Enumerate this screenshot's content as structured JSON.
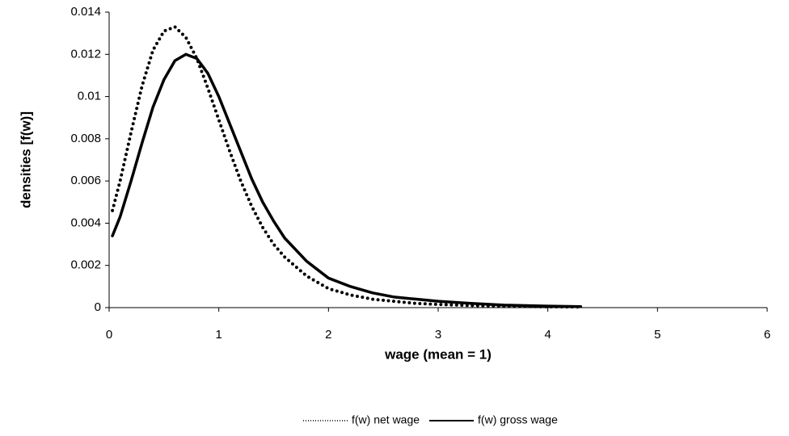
{
  "chart_data": {
    "type": "line",
    "x_label": "wage (mean = 1)",
    "y_label": "densities [f(w)]",
    "x": [
      0.03,
      0.1,
      0.2,
      0.3,
      0.4,
      0.5,
      0.6,
      0.7,
      0.8,
      0.9,
      1.0,
      1.1,
      1.2,
      1.3,
      1.4,
      1.5,
      1.6,
      1.8,
      2.0,
      2.2,
      2.4,
      2.6,
      2.8,
      3.0,
      3.3,
      3.6,
      4.0,
      4.3
    ],
    "series": [
      {
        "name": "f(w) net wage",
        "color": "#000000",
        "dash": "dotted",
        "values": [
          0.0046,
          0.006,
          0.0083,
          0.0105,
          0.0122,
          0.0131,
          0.0133,
          0.0128,
          0.0118,
          0.0104,
          0.0089,
          0.0074,
          0.006,
          0.0048,
          0.0038,
          0.003,
          0.0024,
          0.0015,
          0.0009,
          0.0006,
          0.0004,
          0.0003,
          0.0002,
          0.00015,
          0.0001,
          7e-05,
          4e-05,
          3e-05
        ]
      },
      {
        "name": "f(w) gross wage",
        "color": "#000000",
        "dash": "solid",
        "values": [
          0.0034,
          0.0043,
          0.006,
          0.0078,
          0.0095,
          0.0108,
          0.0117,
          0.012,
          0.0118,
          0.0111,
          0.01,
          0.0087,
          0.0074,
          0.0061,
          0.005,
          0.0041,
          0.0033,
          0.0022,
          0.0014,
          0.001,
          0.0007,
          0.0005,
          0.0004,
          0.0003,
          0.0002,
          0.00012,
          7e-05,
          5e-05
        ]
      }
    ],
    "xlim": [
      0,
      6
    ],
    "xticks": [
      0,
      1,
      2,
      3,
      4,
      5,
      6
    ],
    "ylim": [
      0,
      0.014
    ],
    "yticks": [
      0,
      0.002,
      0.004,
      0.006,
      0.008,
      0.01,
      0.012,
      0.014
    ],
    "grid": false,
    "legend": "bottom"
  }
}
